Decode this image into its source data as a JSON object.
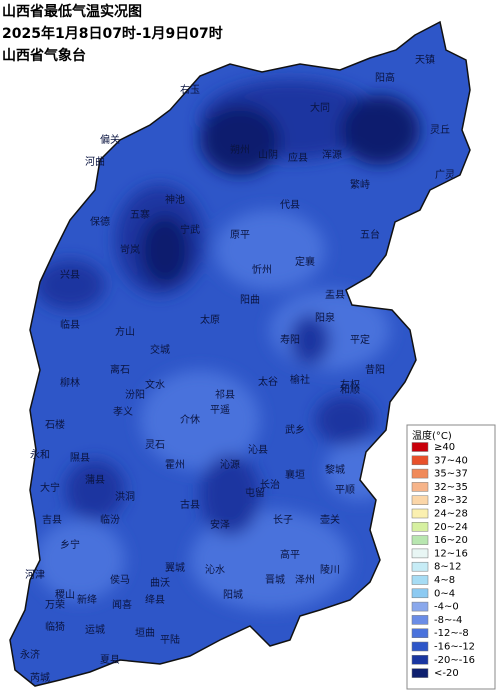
{
  "title": [
    "山西省最低气温实况图",
    "2025年1月8日07时-1月9日07时",
    "山西省气象台"
  ],
  "legend": {
    "title": "温度(°C)",
    "items": [
      {
        "label": "≥40",
        "color": "#c8000a"
      },
      {
        "label": "37~40",
        "color": "#e8502a"
      },
      {
        "label": "35~37",
        "color": "#f08a5a"
      },
      {
        "label": "32~35",
        "color": "#f6b48a"
      },
      {
        "label": "28~32",
        "color": "#fbd6a8"
      },
      {
        "label": "24~28",
        "color": "#fbf0b0"
      },
      {
        "label": "20~24",
        "color": "#d6f0a0"
      },
      {
        "label": "16~20",
        "color": "#b8e6b0"
      },
      {
        "label": "12~16",
        "color": "#e8f6f4"
      },
      {
        "label": "8~12",
        "color": "#c6ecf6"
      },
      {
        "label": "4~8",
        "color": "#a6dcf4"
      },
      {
        "label": "0~4",
        "color": "#8ccaf2"
      },
      {
        "label": "-4~0",
        "color": "#8aa8ec"
      },
      {
        "label": "-8~-4",
        "color": "#6a8ce6"
      },
      {
        "label": "-12~-8",
        "color": "#4a72dc"
      },
      {
        "label": "-16~-12",
        "color": "#2e56c8"
      },
      {
        "label": "-20~-16",
        "color": "#1a36a0"
      },
      {
        "label": "<-20",
        "color": "#0d1f6e"
      }
    ]
  },
  "counties": [
    "天镇",
    "阳高",
    "大同",
    "浑源",
    "应县",
    "山阴",
    "朔州",
    "右玉",
    "偏关",
    "河曲",
    "保德",
    "五寨",
    "岢岚",
    "神池",
    "宁武",
    "代县",
    "繁峙",
    "五台",
    "原平",
    "忻州",
    "定襄",
    "盂县",
    "阳曲",
    "太原",
    "阳泉",
    "平定",
    "寿阳",
    "昔阳",
    "和顺",
    "兴县",
    "临县",
    "方山",
    "离石",
    "柳林",
    "交城",
    "文水",
    "汾阳",
    "孝义",
    "介休",
    "平遥",
    "祁县",
    "太谷",
    "榆社",
    "左权",
    "石楼",
    "永和",
    "隰县",
    "蒲县",
    "大宁",
    "吉县",
    "乡宁",
    "灵石",
    "霍州",
    "洪洞",
    "临汾",
    "古县",
    "安泽",
    "沁源",
    "沁县",
    "武乡",
    "襄垣",
    "长治",
    "黎城",
    "平顺",
    "屯留",
    "长子",
    "壶关",
    "高平",
    "陵川",
    "泽州",
    "晋城",
    "阳城",
    "沁水",
    "翼城",
    "曲沃",
    "侯马",
    "绛县",
    "垣曲",
    "闻喜",
    "新绛",
    "稷山",
    "河津",
    "万荣",
    "临猗",
    "运城",
    "夏县",
    "平陆",
    "芮城",
    "永济",
    "灵丘",
    "广灵"
  ]
}
